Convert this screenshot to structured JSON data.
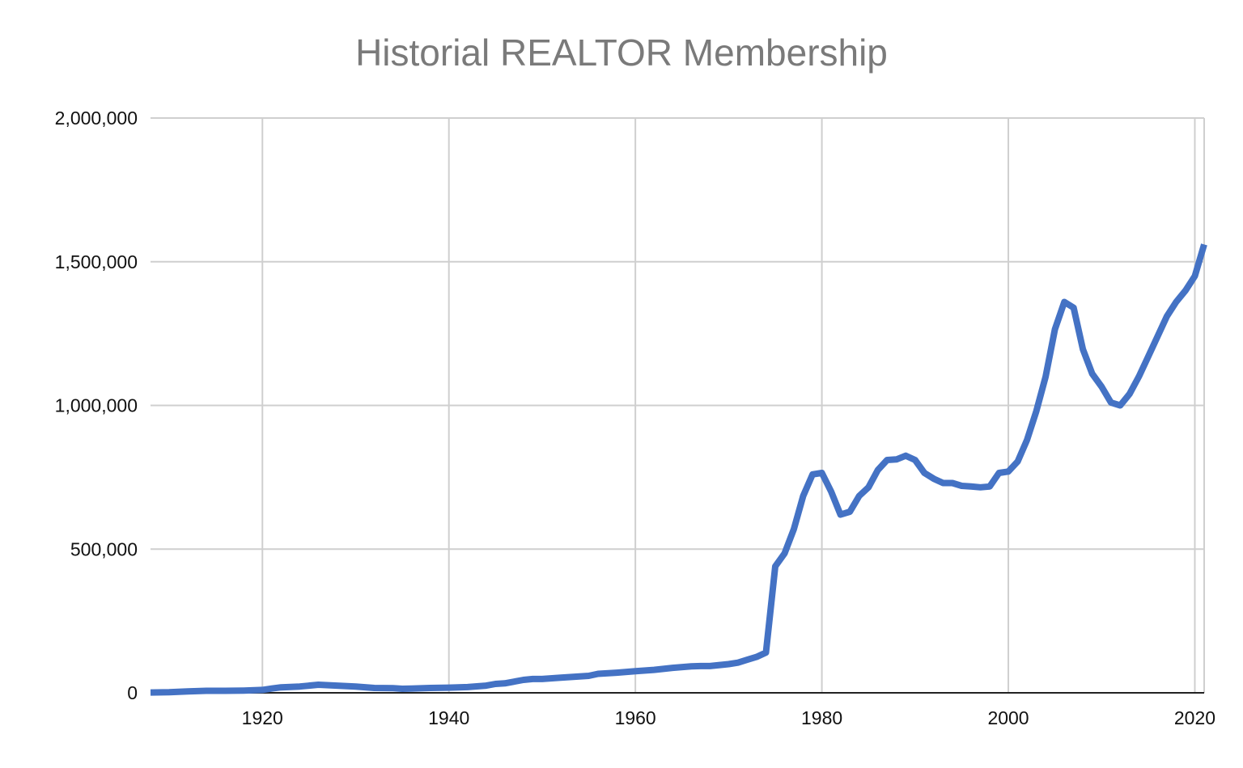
{
  "chart_data": {
    "type": "line",
    "title": "Historial REALTOR Membership",
    "xlabel": "",
    "ylabel": "",
    "xlim": [
      1908,
      2021
    ],
    "ylim": [
      0,
      2000000
    ],
    "x_ticks": [
      1920,
      1940,
      1960,
      1980,
      2000,
      2020
    ],
    "y_ticks": [
      0,
      500000,
      1000000,
      1500000,
      2000000
    ],
    "y_tick_labels": [
      "0",
      "500,000",
      "1,000,000",
      "1,500,000",
      "2,000,000"
    ],
    "grid": true,
    "legend": "none",
    "series": [
      {
        "color": "#4472C4",
        "x": [
          1908,
          1910,
          1912,
          1914,
          1916,
          1918,
          1920,
          1921,
          1922,
          1924,
          1926,
          1928,
          1930,
          1932,
          1934,
          1935,
          1936,
          1938,
          1940,
          1942,
          1944,
          1945,
          1946,
          1948,
          1949,
          1950,
          1952,
          1954,
          1955,
          1956,
          1958,
          1960,
          1962,
          1964,
          1966,
          1967,
          1968,
          1970,
          1971,
          1972,
          1973,
          1974,
          1975,
          1976,
          1977,
          1978,
          1979,
          1980,
          1981,
          1982,
          1983,
          1984,
          1985,
          1986,
          1987,
          1988,
          1989,
          1990,
          1991,
          1992,
          1993,
          1994,
          1995,
          1996,
          1997,
          1998,
          1999,
          2000,
          2001,
          2002,
          2003,
          2004,
          2005,
          2006,
          2007,
          2008,
          2009,
          2010,
          2011,
          2012,
          2013,
          2014,
          2015,
          2016,
          2017,
          2018,
          2019,
          2020,
          2021
        ],
        "values": [
          1000,
          2000,
          5000,
          7000,
          7000,
          8000,
          10000,
          15000,
          19000,
          22000,
          28000,
          25000,
          22000,
          17000,
          16000,
          14000,
          15000,
          17000,
          18000,
          20000,
          25000,
          31000,
          33000,
          45000,
          48000,
          48000,
          53000,
          57000,
          59000,
          66000,
          70000,
          75000,
          80000,
          87000,
          92000,
          93000,
          93000,
          100000,
          105000,
          115000,
          125000,
          140000,
          440000,
          485000,
          570000,
          685000,
          760000,
          765000,
          700000,
          620000,
          630000,
          685000,
          715000,
          775000,
          810000,
          812000,
          825000,
          810000,
          765000,
          745000,
          730000,
          730000,
          720000,
          718000,
          715000,
          718000,
          765000,
          770000,
          805000,
          880000,
          980000,
          1100000,
          1265000,
          1360000,
          1340000,
          1195000,
          1110000,
          1065000,
          1010000,
          1000000,
          1040000,
          1100000,
          1170000,
          1240000,
          1310000,
          1360000,
          1400000,
          1450000,
          1560000
        ]
      }
    ]
  }
}
